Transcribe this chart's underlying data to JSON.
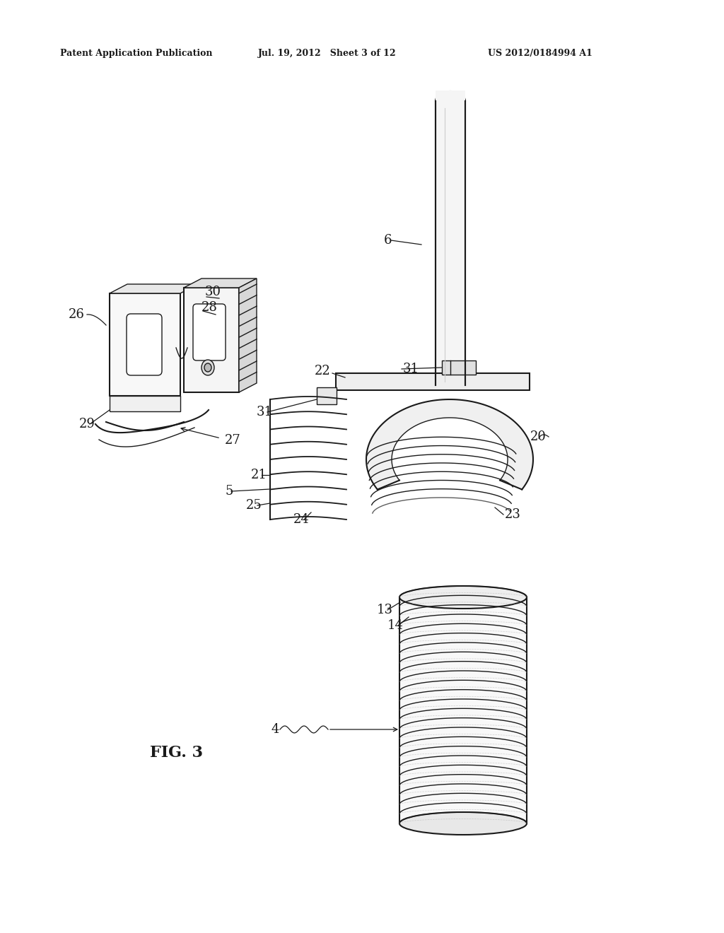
{
  "bg_color": "#ffffff",
  "line_color": "#1a1a1a",
  "header_left": "Patent Application Publication",
  "header_center": "Jul. 19, 2012   Sheet 3 of 12",
  "header_right": "US 2012/0184994 A1",
  "fig_label": "FIG. 3"
}
